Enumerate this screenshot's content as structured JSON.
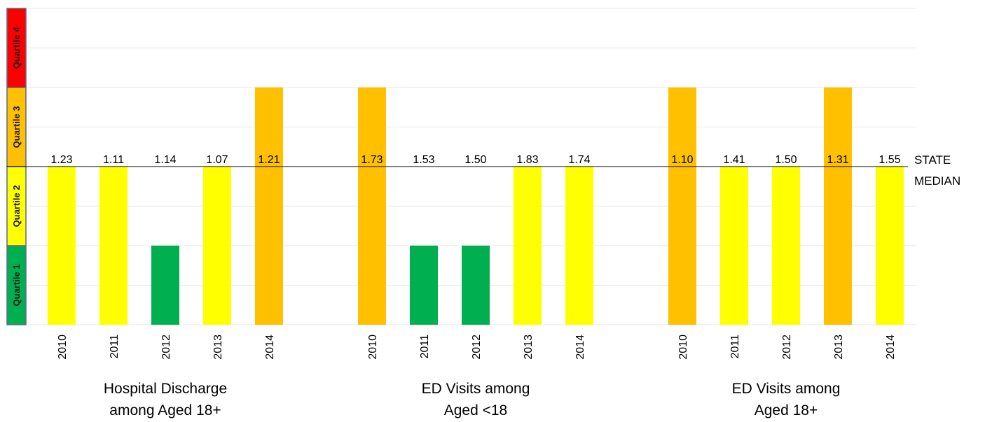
{
  "chart_data": {
    "type": "bar",
    "quartiles": [
      {
        "label": "Quartile 1",
        "color": "#00b050"
      },
      {
        "label": "Quartile 2",
        "color": "#ffff00"
      },
      {
        "label": "Quartile 3",
        "color": "#ffc000"
      },
      {
        "label": "Quartile 4",
        "color": "#ff0000"
      }
    ],
    "median_label": [
      "STATE",
      "MEDIAN"
    ],
    "groups": [
      {
        "title": [
          "Hospital Discharge",
          "among Aged 18+"
        ],
        "bars": [
          {
            "year": "2010",
            "value": "1.23",
            "quartile": 2
          },
          {
            "year": "2011",
            "value": "1.11",
            "quartile": 2
          },
          {
            "year": "2012",
            "value": "1.14",
            "quartile": 1
          },
          {
            "year": "2013",
            "value": "1.07",
            "quartile": 2
          },
          {
            "year": "2014",
            "value": "1.21",
            "quartile": 3
          }
        ]
      },
      {
        "title": [
          "ED Visits among",
          "Aged <18"
        ],
        "bars": [
          {
            "year": "2010",
            "value": "1.73",
            "quartile": 3
          },
          {
            "year": "2011",
            "value": "1.53",
            "quartile": 1
          },
          {
            "year": "2012",
            "value": "1.50",
            "quartile": 1
          },
          {
            "year": "2013",
            "value": "1.83",
            "quartile": 2
          },
          {
            "year": "2014",
            "value": "1.74",
            "quartile": 2
          }
        ]
      },
      {
        "title": [
          "ED Visits among",
          "Aged 18+"
        ],
        "bars": [
          {
            "year": "2010",
            "value": "1.10",
            "quartile": 3
          },
          {
            "year": "2011",
            "value": "1.41",
            "quartile": 2
          },
          {
            "year": "2012",
            "value": "1.50",
            "quartile": 2
          },
          {
            "year": "2013",
            "value": "1.31",
            "quartile": 3
          },
          {
            "year": "2014",
            "value": "1.55",
            "quartile": 2
          }
        ]
      }
    ],
    "ylim": [
      0,
      4
    ],
    "grid": true
  }
}
